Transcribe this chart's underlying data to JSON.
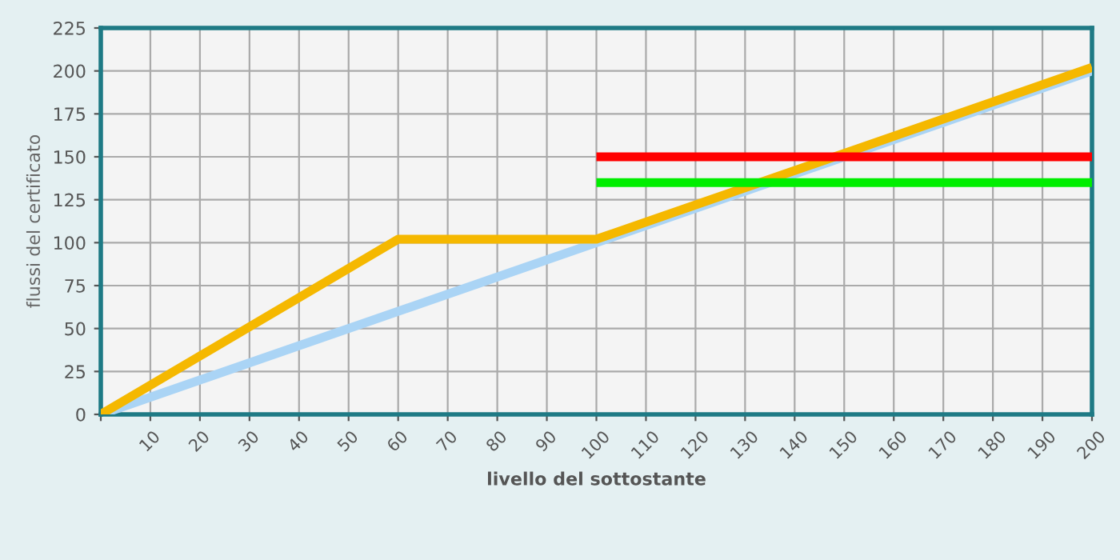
{
  "chart_data": {
    "type": "line",
    "xlabel": "livello del sottostante",
    "ylabel": "flussi del certificato",
    "xlim": [
      0,
      200
    ],
    "xticks": [
      {
        "value": 0,
        "label": null
      },
      10,
      20,
      30,
      40,
      50,
      60,
      70,
      80,
      90,
      100,
      110,
      120,
      130,
      140,
      150,
      160,
      170,
      180,
      190,
      200
    ],
    "ylim": [
      0,
      225
    ],
    "yticks": [
      0,
      25,
      50,
      75,
      100,
      125,
      150,
      175,
      200,
      225
    ],
    "grid": true,
    "marker": "none",
    "line_style": "solid",
    "series": [
      {
        "color": "#aad4f5",
        "x": [
          0,
          200
        ],
        "values": [
          0,
          200
        ]
      },
      {
        "color": "#f5b800",
        "x": [
          0,
          60,
          100,
          200
        ],
        "values": [
          0,
          102,
          102,
          202
        ]
      },
      {
        "color": "#ff0000",
        "x": [
          100,
          200
        ],
        "values": [
          150,
          150
        ]
      },
      {
        "color": "#00ee00",
        "x": [
          100,
          200
        ],
        "values": [
          135,
          135
        ]
      }
    ]
  }
}
